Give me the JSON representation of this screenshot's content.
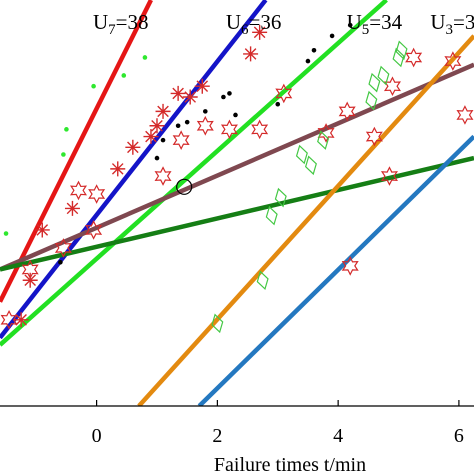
{
  "chart_data": {
    "type": "scatter",
    "title": "",
    "xlabel": "Failure times t/min",
    "ylabel": "",
    "xlim": [
      -1.6,
      6.25
    ],
    "ylim": [
      -2.35,
      3.3
    ],
    "xticks": [
      0,
      2,
      4,
      6
    ],
    "xtick_labels": [
      "0",
      "2",
      "4",
      "6"
    ],
    "grid": false,
    "legend": "none",
    "line_labels": [
      {
        "base": "U",
        "sub": "7",
        "suffix": "=38",
        "x": 0.4
      },
      {
        "base": "U",
        "sub": "6",
        "suffix": "=36",
        "x": 2.6
      },
      {
        "base": "U",
        "sub": "5",
        "suffix": "=34",
        "x": 4.6
      },
      {
        "base": "U",
        "sub": "3",
        "suffix": "=3",
        "x": 5.9
      }
    ],
    "lines": [
      {
        "color": "#e51616",
        "x": [
          -1.6,
          0.9
        ],
        "y": [
          -0.9,
          3.3
        ]
      },
      {
        "color": "#1414c8",
        "x": [
          -1.6,
          2.8
        ],
        "y": [
          -1.4,
          3.3
        ]
      },
      {
        "color": "#22e022",
        "x": [
          -1.6,
          4.8
        ],
        "y": [
          -1.5,
          3.3
        ]
      },
      {
        "color": "#7f4850",
        "x": [
          -1.6,
          6.25
        ],
        "y": [
          -0.45,
          2.4
        ]
      },
      {
        "color": "#157e15",
        "x": [
          -1.6,
          6.25
        ],
        "y": [
          -0.45,
          1.1
        ]
      },
      {
        "color": "#e38a10",
        "x": [
          0.7,
          6.25
        ],
        "y": [
          -2.35,
          2.8
        ]
      },
      {
        "color": "#2478c0",
        "x": [
          1.7,
          6.25
        ],
        "y": [
          -2.35,
          1.4
        ]
      }
    ],
    "series": [
      {
        "marker": "star6",
        "color": "#d42a2a",
        "points": [
          [
            -0.55,
            -0.15
          ],
          [
            -0.3,
            0.65
          ],
          [
            -0.05,
            0.1
          ],
          [
            0.0,
            0.6
          ],
          [
            1.1,
            0.85
          ],
          [
            1.4,
            1.35
          ],
          [
            1.8,
            1.55
          ],
          [
            2.2,
            1.5
          ],
          [
            2.7,
            1.5
          ],
          [
            3.1,
            2.0
          ],
          [
            3.8,
            1.45
          ],
          [
            4.15,
            1.75
          ],
          [
            4.6,
            1.4
          ],
          [
            4.9,
            2.1
          ],
          [
            5.25,
            2.5
          ],
          [
            5.9,
            2.45
          ],
          [
            6.1,
            1.7
          ],
          [
            4.85,
            0.85
          ],
          [
            4.2,
            -0.4
          ],
          [
            -1.1,
            -0.45
          ],
          [
            -1.45,
            -1.15
          ]
        ]
      },
      {
        "marker": "asterisk",
        "color": "#d42a2a",
        "points": [
          [
            -0.9,
            0.1
          ],
          [
            -0.4,
            0.4
          ],
          [
            0.35,
            0.95
          ],
          [
            0.6,
            1.25
          ],
          [
            0.9,
            1.4
          ],
          [
            1.0,
            1.55
          ],
          [
            1.1,
            1.75
          ],
          [
            1.35,
            2.0
          ],
          [
            1.55,
            1.95
          ],
          [
            1.75,
            2.1
          ],
          [
            2.55,
            2.55
          ],
          [
            2.7,
            2.85
          ],
          [
            -1.25,
            -1.15
          ],
          [
            -1.1,
            -0.6
          ]
        ]
      },
      {
        "marker": "dot",
        "color": "#000000",
        "points": [
          [
            -0.6,
            -0.35
          ],
          [
            1.0,
            1.1
          ],
          [
            1.1,
            1.35
          ],
          [
            1.35,
            1.55
          ],
          [
            1.5,
            1.6
          ],
          [
            1.8,
            1.75
          ],
          [
            2.1,
            1.95
          ],
          [
            2.2,
            2.0
          ],
          [
            2.3,
            1.7
          ],
          [
            3.0,
            1.85
          ],
          [
            3.5,
            2.45
          ],
          [
            3.6,
            2.6
          ],
          [
            3.9,
            2.8
          ],
          [
            4.2,
            2.95
          ]
        ]
      },
      {
        "marker": "dot",
        "color": "#2ee82e",
        "points": [
          [
            -1.5,
            0.05
          ],
          [
            -0.55,
            1.15
          ],
          [
            -0.5,
            1.5
          ],
          [
            -0.05,
            2.1
          ],
          [
            0.45,
            2.25
          ],
          [
            0.8,
            2.5
          ]
        ]
      },
      {
        "marker": "diamond",
        "color": "#44c844",
        "points": [
          [
            2.0,
            -1.2
          ],
          [
            2.75,
            -0.6
          ],
          [
            2.9,
            0.3
          ],
          [
            3.05,
            0.55
          ],
          [
            3.4,
            1.15
          ],
          [
            3.55,
            1.0
          ],
          [
            3.75,
            1.35
          ],
          [
            4.55,
            1.9
          ],
          [
            4.6,
            2.15
          ],
          [
            4.75,
            2.25
          ],
          [
            5.0,
            2.5
          ],
          [
            5.05,
            2.6
          ]
        ]
      },
      {
        "marker": "circle",
        "color": "#000000",
        "points": [
          [
            1.45,
            0.7
          ]
        ]
      }
    ]
  }
}
